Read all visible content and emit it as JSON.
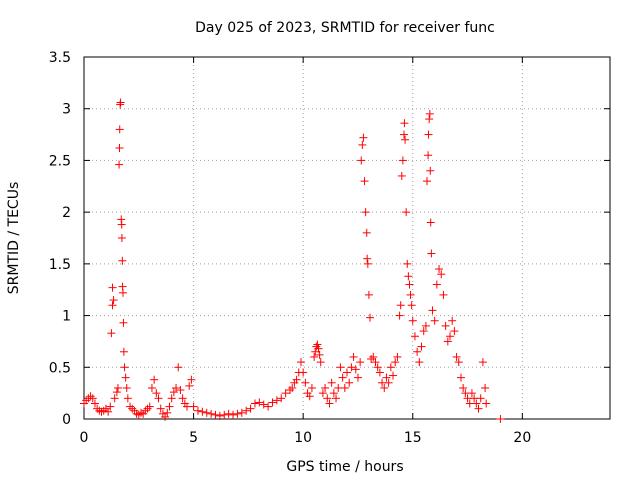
{
  "chart_data": {
    "type": "scatter",
    "title": "Day 025 of 2023, SRMTID for receiver func",
    "xlabel": "GPS time / hours",
    "ylabel": "SRMTID / TECUs",
    "xlim": [
      0,
      24
    ],
    "ylim": [
      0,
      3.5
    ],
    "xticks": [
      0,
      5,
      10,
      15,
      20
    ],
    "xtick_labels": [
      "0",
      "5",
      "10",
      "15",
      "20"
    ],
    "yticks": [
      0,
      0.5,
      1,
      1.5,
      2,
      2.5,
      3,
      3.5
    ],
    "ytick_labels": [
      "0",
      "0.5",
      "1",
      "1.5",
      "2",
      "2.5",
      "3",
      "3.5"
    ],
    "grid": true,
    "marker": "plus",
    "color": "#ff0000",
    "series": [
      {
        "name": "SRMTID",
        "points": [
          [
            0.0,
            0.15
          ],
          [
            0.1,
            0.18
          ],
          [
            0.2,
            0.2
          ],
          [
            0.3,
            0.22
          ],
          [
            0.4,
            0.2
          ],
          [
            0.5,
            0.15
          ],
          [
            0.6,
            0.1
          ],
          [
            0.7,
            0.08
          ],
          [
            0.8,
            0.07
          ],
          [
            0.9,
            0.08
          ],
          [
            1.0,
            0.1
          ],
          [
            1.1,
            0.07
          ],
          [
            1.2,
            0.12
          ],
          [
            1.25,
            0.83
          ],
          [
            1.3,
            1.1
          ],
          [
            1.3,
            1.27
          ],
          [
            1.35,
            1.15
          ],
          [
            1.4,
            0.2
          ],
          [
            1.5,
            0.26
          ],
          [
            1.55,
            0.3
          ],
          [
            1.6,
            2.46
          ],
          [
            1.62,
            2.62
          ],
          [
            1.63,
            2.8
          ],
          [
            1.65,
            3.04
          ],
          [
            1.67,
            3.06
          ],
          [
            1.7,
            1.93
          ],
          [
            1.72,
            1.88
          ],
          [
            1.73,
            1.75
          ],
          [
            1.75,
            1.53
          ],
          [
            1.76,
            1.28
          ],
          [
            1.78,
            1.22
          ],
          [
            1.8,
            0.93
          ],
          [
            1.82,
            0.65
          ],
          [
            1.85,
            0.5
          ],
          [
            1.9,
            0.4
          ],
          [
            1.95,
            0.3
          ],
          [
            2.0,
            0.2
          ],
          [
            2.1,
            0.12
          ],
          [
            2.2,
            0.1
          ],
          [
            2.3,
            0.08
          ],
          [
            2.4,
            0.05
          ],
          [
            2.5,
            0.04
          ],
          [
            2.6,
            0.06
          ],
          [
            2.7,
            0.05
          ],
          [
            2.8,
            0.08
          ],
          [
            2.9,
            0.1
          ],
          [
            3.0,
            0.12
          ],
          [
            3.1,
            0.3
          ],
          [
            3.2,
            0.38
          ],
          [
            3.3,
            0.25
          ],
          [
            3.4,
            0.2
          ],
          [
            3.5,
            0.1
          ],
          [
            3.6,
            0.05
          ],
          [
            3.7,
            0.02
          ],
          [
            3.8,
            0.06
          ],
          [
            3.9,
            0.12
          ],
          [
            4.0,
            0.2
          ],
          [
            4.1,
            0.26
          ],
          [
            4.2,
            0.3
          ],
          [
            4.3,
            0.5
          ],
          [
            4.4,
            0.28
          ],
          [
            4.5,
            0.2
          ],
          [
            4.6,
            0.15
          ],
          [
            4.7,
            0.12
          ],
          [
            4.8,
            0.32
          ],
          [
            4.9,
            0.38
          ],
          [
            5.0,
            0.12
          ],
          [
            5.2,
            0.08
          ],
          [
            5.4,
            0.07
          ],
          [
            5.6,
            0.06
          ],
          [
            5.8,
            0.05
          ],
          [
            6.0,
            0.04
          ],
          [
            6.2,
            0.03
          ],
          [
            6.4,
            0.04
          ],
          [
            6.6,
            0.05
          ],
          [
            6.8,
            0.04
          ],
          [
            7.0,
            0.05
          ],
          [
            7.2,
            0.06
          ],
          [
            7.4,
            0.08
          ],
          [
            7.6,
            0.1
          ],
          [
            7.8,
            0.15
          ],
          [
            8.0,
            0.16
          ],
          [
            8.2,
            0.14
          ],
          [
            8.4,
            0.12
          ],
          [
            8.6,
            0.16
          ],
          [
            8.8,
            0.18
          ],
          [
            9.0,
            0.2
          ],
          [
            9.2,
            0.25
          ],
          [
            9.4,
            0.28
          ],
          [
            9.5,
            0.3
          ],
          [
            9.6,
            0.35
          ],
          [
            9.7,
            0.38
          ],
          [
            9.8,
            0.45
          ],
          [
            9.9,
            0.55
          ],
          [
            10.0,
            0.45
          ],
          [
            10.1,
            0.35
          ],
          [
            10.2,
            0.25
          ],
          [
            10.3,
            0.22
          ],
          [
            10.4,
            0.3
          ],
          [
            10.5,
            0.6
          ],
          [
            10.55,
            0.65
          ],
          [
            10.6,
            0.7
          ],
          [
            10.65,
            0.72
          ],
          [
            10.7,
            0.68
          ],
          [
            10.75,
            0.62
          ],
          [
            10.8,
            0.55
          ],
          [
            10.9,
            0.25
          ],
          [
            11.0,
            0.3
          ],
          [
            11.1,
            0.2
          ],
          [
            11.2,
            0.15
          ],
          [
            11.3,
            0.35
          ],
          [
            11.4,
            0.25
          ],
          [
            11.5,
            0.2
          ],
          [
            11.6,
            0.3
          ],
          [
            11.7,
            0.5
          ],
          [
            11.8,
            0.4
          ],
          [
            11.9,
            0.3
          ],
          [
            12.0,
            0.45
          ],
          [
            12.1,
            0.35
          ],
          [
            12.2,
            0.5
          ],
          [
            12.3,
            0.6
          ],
          [
            12.4,
            0.48
          ],
          [
            12.5,
            0.4
          ],
          [
            12.6,
            0.55
          ],
          [
            12.65,
            2.5
          ],
          [
            12.7,
            2.65
          ],
          [
            12.75,
            2.72
          ],
          [
            12.8,
            2.3
          ],
          [
            12.85,
            2.0
          ],
          [
            12.9,
            1.8
          ],
          [
            12.92,
            1.55
          ],
          [
            12.95,
            1.5
          ],
          [
            13.0,
            1.2
          ],
          [
            13.05,
            0.98
          ],
          [
            13.1,
            0.58
          ],
          [
            13.2,
            0.6
          ],
          [
            13.3,
            0.55
          ],
          [
            13.4,
            0.5
          ],
          [
            13.5,
            0.45
          ],
          [
            13.6,
            0.35
          ],
          [
            13.7,
            0.3
          ],
          [
            13.8,
            0.4
          ],
          [
            13.9,
            0.35
          ],
          [
            14.0,
            0.5
          ],
          [
            14.1,
            0.42
          ],
          [
            14.2,
            0.55
          ],
          [
            14.3,
            0.6
          ],
          [
            14.4,
            1.0
          ],
          [
            14.45,
            1.1
          ],
          [
            14.5,
            2.35
          ],
          [
            14.55,
            2.5
          ],
          [
            14.6,
            2.75
          ],
          [
            14.62,
            2.86
          ],
          [
            14.65,
            2.7
          ],
          [
            14.7,
            2.0
          ],
          [
            14.75,
            1.5
          ],
          [
            14.8,
            1.38
          ],
          [
            14.85,
            1.3
          ],
          [
            14.9,
            1.2
          ],
          [
            14.95,
            1.1
          ],
          [
            15.0,
            0.95
          ],
          [
            15.1,
            0.8
          ],
          [
            15.2,
            0.65
          ],
          [
            15.3,
            0.55
          ],
          [
            15.4,
            0.7
          ],
          [
            15.5,
            0.85
          ],
          [
            15.6,
            0.9
          ],
          [
            15.65,
            2.3
          ],
          [
            15.7,
            2.55
          ],
          [
            15.72,
            2.75
          ],
          [
            15.75,
            2.9
          ],
          [
            15.78,
            2.95
          ],
          [
            15.8,
            2.4
          ],
          [
            15.82,
            1.9
          ],
          [
            15.85,
            1.6
          ],
          [
            15.9,
            1.05
          ],
          [
            16.0,
            0.95
          ],
          [
            16.1,
            1.3
          ],
          [
            16.2,
            1.45
          ],
          [
            16.3,
            1.4
          ],
          [
            16.4,
            1.2
          ],
          [
            16.5,
            0.9
          ],
          [
            16.6,
            0.75
          ],
          [
            16.7,
            0.8
          ],
          [
            16.8,
            0.95
          ],
          [
            16.9,
            0.85
          ],
          [
            17.0,
            0.6
          ],
          [
            17.1,
            0.55
          ],
          [
            17.2,
            0.4
          ],
          [
            17.3,
            0.3
          ],
          [
            17.4,
            0.25
          ],
          [
            17.5,
            0.2
          ],
          [
            17.6,
            0.15
          ],
          [
            17.7,
            0.25
          ],
          [
            17.8,
            0.2
          ],
          [
            17.9,
            0.15
          ],
          [
            18.0,
            0.1
          ],
          [
            18.1,
            0.2
          ],
          [
            18.2,
            0.55
          ],
          [
            18.3,
            0.3
          ],
          [
            18.35,
            0.15
          ],
          [
            19.0,
            0.0
          ]
        ]
      }
    ]
  }
}
